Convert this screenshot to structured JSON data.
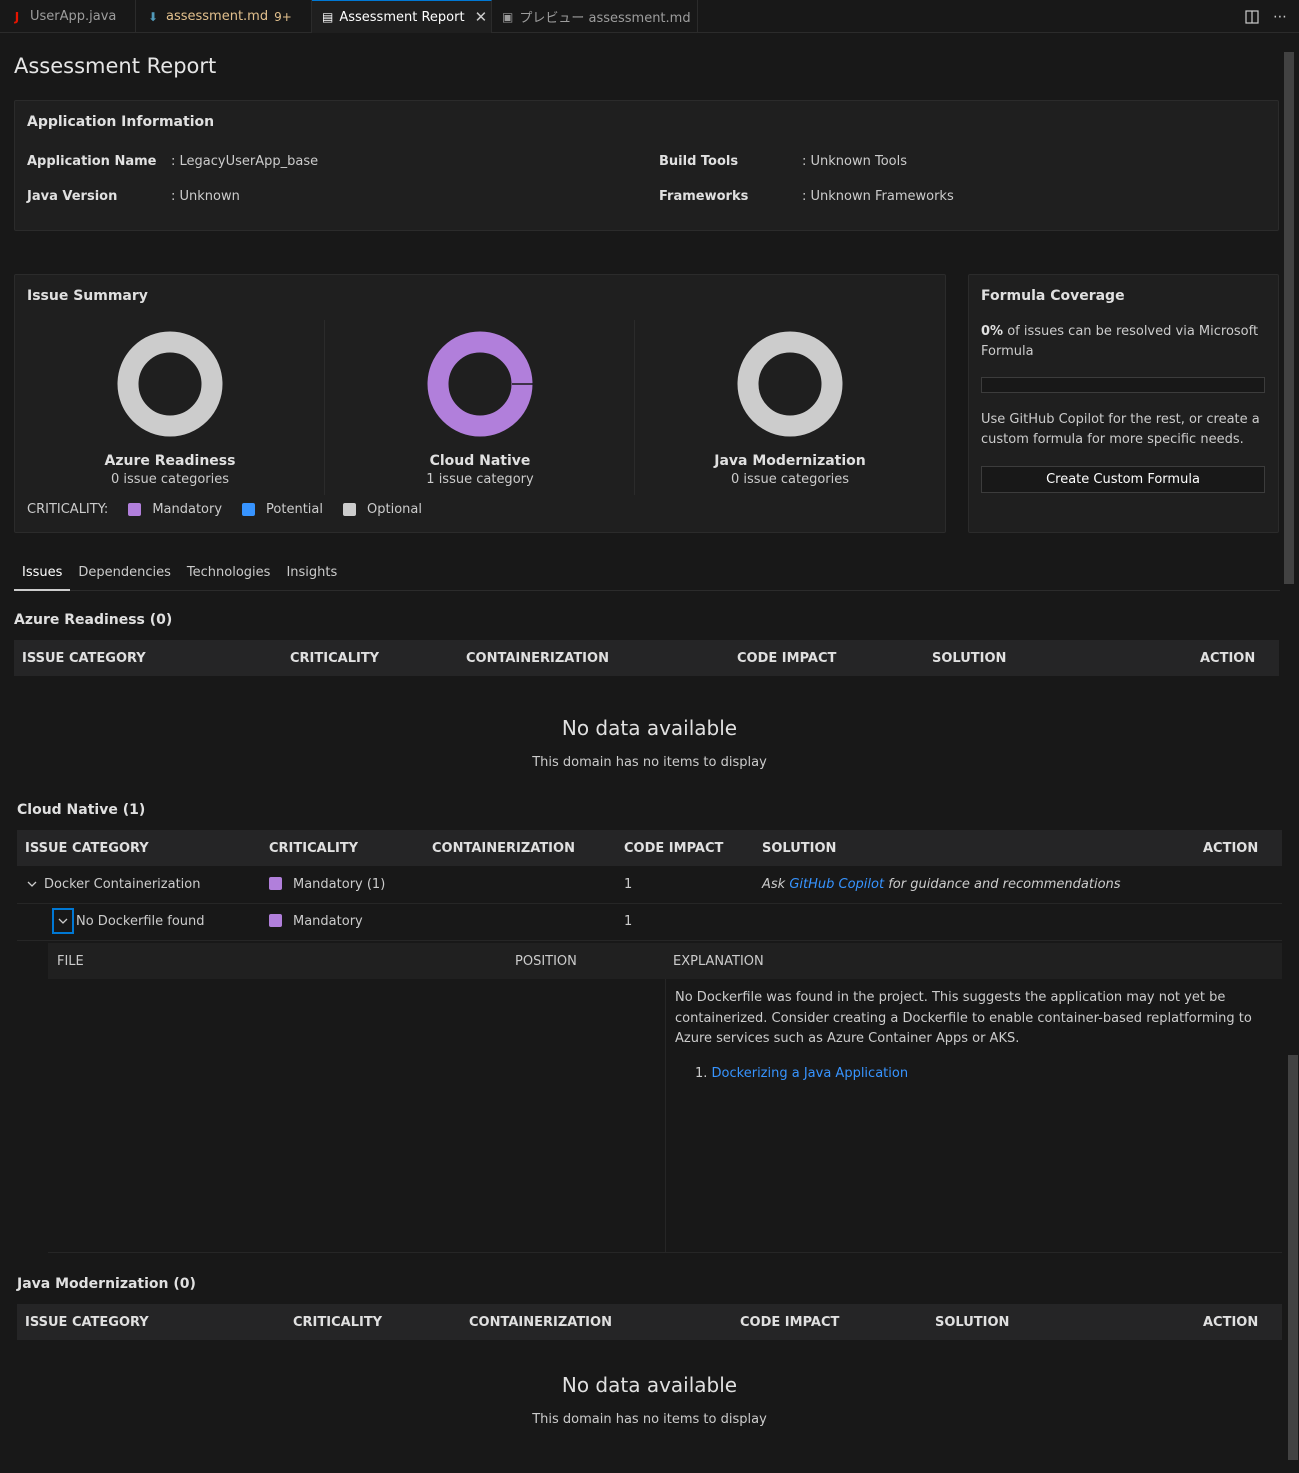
{
  "tabs": [
    {
      "label": "UserApp.java",
      "icon": "java-icon",
      "icon_glyph": "J",
      "icon_color": "#e51400"
    },
    {
      "label": "assessment.md",
      "badge": "9+",
      "icon": "markdown-icon",
      "icon_glyph": "⬇",
      "icon_color": "#519aba"
    },
    {
      "label": "Assessment Report",
      "icon": "report-icon",
      "icon_glyph": "▤",
      "active": true,
      "close_glyph": "✕"
    },
    {
      "label": "プレビュー assessment.md",
      "icon": "preview-icon",
      "icon_glyph": "▣"
    }
  ],
  "page_title": "Assessment Report",
  "app_info": {
    "title": "Application Information",
    "fields": [
      {
        "label": "Application Name",
        "value": ": LegacyUserApp_base"
      },
      {
        "label": "Java Version",
        "value": ": Unknown"
      },
      {
        "label": "Build Tools",
        "value": ": Unknown Tools"
      },
      {
        "label": "Frameworks",
        "value": ": Unknown Frameworks"
      }
    ]
  },
  "issue_summary": {
    "title": "Issue Summary",
    "donuts": [
      {
        "name": "Azure Readiness",
        "sub": "0 issue categories",
        "color": "#cccccc"
      },
      {
        "name": "Cloud Native",
        "sub": "1 issue category",
        "color": "#b17fdb"
      },
      {
        "name": "Java Modernization",
        "sub": "0 issue categories",
        "color": "#cccccc"
      }
    ],
    "legend_label": "CRITICALITY:",
    "legend": [
      {
        "label": "Mandatory",
        "color": "#b17fdb"
      },
      {
        "label": "Potential",
        "color": "#3794ff"
      },
      {
        "label": "Optional",
        "color": "#cccccc"
      }
    ]
  },
  "formula": {
    "title": "Formula Coverage",
    "percent": "0%",
    "percent_text": " of issues can be resolved via Microsoft Formula",
    "progress": 0,
    "help_text": "Use GitHub Copilot for the rest, or create a custom formula for more specific needs.",
    "button_label": "Create Custom Formula"
  },
  "subtabs": [
    "Issues",
    "Dependencies",
    "Technologies",
    "Insights"
  ],
  "columns": [
    "Issue Category",
    "Criticality",
    "Containerization",
    "Code Impact",
    "Solution",
    "Action"
  ],
  "sections": {
    "azure": {
      "title": "Azure Readiness (0)",
      "nodata_title": "No data available",
      "nodata_sub": "This domain has no items to display"
    },
    "cloud": {
      "title": "Cloud Native (1)"
    },
    "java": {
      "title": "Java Modernization (0)",
      "nodata_title": "No data available",
      "nodata_sub": "This domain has no items to display"
    }
  },
  "cloud_rows": {
    "category": {
      "name": "Docker Containerization",
      "criticality": "Mandatory (1)",
      "code_impact": "1",
      "solution_prefix": "Ask ",
      "solution_link": "GitHub Copilot",
      "solution_suffix": " for guidance and recommendations"
    },
    "issue": {
      "name": "No Dockerfile found",
      "criticality": "Mandatory",
      "code_impact": "1"
    }
  },
  "detail": {
    "columns": [
      "File",
      "Position",
      "Explanation"
    ],
    "explanation": "No Dockerfile was found in the project. This suggests the application may not yet be containerized. Consider creating a Dockerfile to enable container-based replatforming to Azure services such as Azure Container Apps or AKS.",
    "ref_number": "1.",
    "ref_link": "Dockerizing a Java Application"
  }
}
